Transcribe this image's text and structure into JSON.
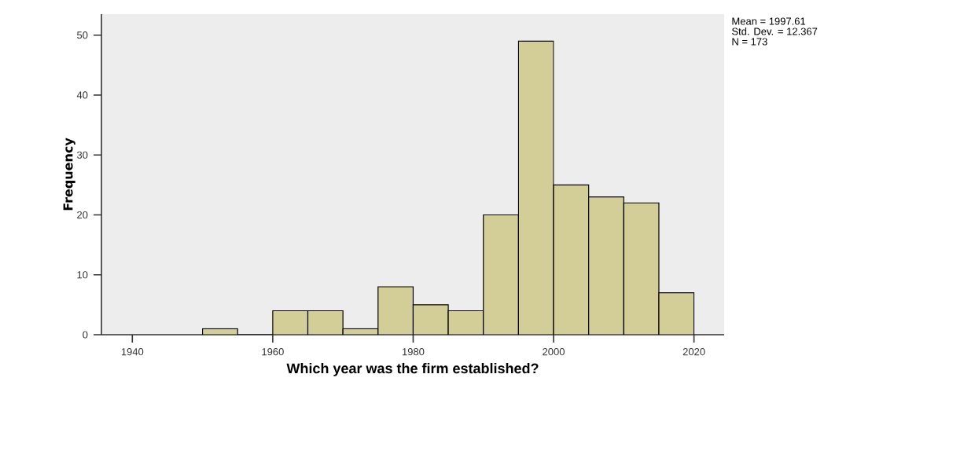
{
  "chart_data": {
    "type": "histogram",
    "xlabel": "Which year was the firm established?",
    "ylabel": "Frequency",
    "bins": [
      1950,
      1955,
      1960,
      1965,
      1970,
      1975,
      1980,
      1985,
      1990,
      1995,
      2000,
      2005,
      2010,
      2015,
      2020
    ],
    "values": [
      1,
      0,
      4,
      4,
      1,
      8,
      5,
      4,
      20,
      49,
      25,
      23,
      22,
      7
    ],
    "color": "#d3ce97",
    "xlim": [
      1935.6,
      2024.3
    ],
    "xticks": [
      1940,
      1960,
      1980,
      2000,
      2020
    ],
    "ylim": [
      0,
      53.5
    ],
    "yticks": [
      0,
      10,
      20,
      30,
      40,
      50
    ],
    "annotations": [
      "Mean = 1997.61",
      "Std. Dev. = 12.367",
      "N = 173"
    ]
  }
}
